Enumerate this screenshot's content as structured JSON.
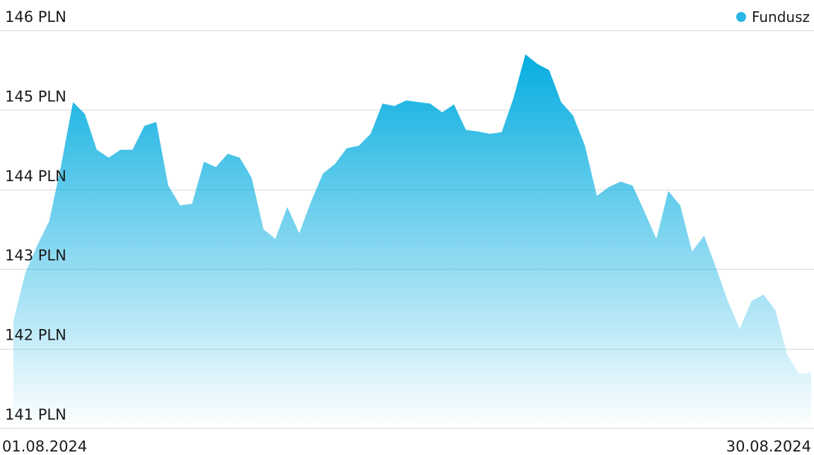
{
  "chart_data": {
    "type": "area",
    "x_start_label": "01.08.2024",
    "x_end_label": "30.08.2024",
    "y_tick_labels": [
      "141 PLN",
      "142 PLN",
      "143 PLN",
      "144 PLN",
      "145 PLN",
      "146 PLN"
    ],
    "y_ticks": [
      141,
      142,
      143,
      144,
      145,
      146
    ],
    "ylim": [
      141,
      146
    ],
    "grid": true,
    "legend_position": "top-right",
    "series": [
      {
        "name": "Fundusz",
        "color": "#2bb6e6",
        "values": [
          142.35,
          142.95,
          143.3,
          143.6,
          144.3,
          145.1,
          144.95,
          144.5,
          144.4,
          144.5,
          144.5,
          144.8,
          144.85,
          144.05,
          143.8,
          143.82,
          144.35,
          144.28,
          144.45,
          144.4,
          144.15,
          143.5,
          143.38,
          143.78,
          143.45,
          143.85,
          144.2,
          144.32,
          144.52,
          144.55,
          144.7,
          145.08,
          145.05,
          145.12,
          145.1,
          145.08,
          144.97,
          145.07,
          144.75,
          144.73,
          144.7,
          144.72,
          145.15,
          145.7,
          145.58,
          145.5,
          145.1,
          144.93,
          144.55,
          143.92,
          144.03,
          144.1,
          144.05,
          143.72,
          143.38,
          143.98,
          143.8,
          143.22,
          143.42,
          143.02,
          142.6,
          142.25,
          142.6,
          142.68,
          142.48,
          141.92,
          141.68,
          141.7
        ]
      }
    ]
  }
}
